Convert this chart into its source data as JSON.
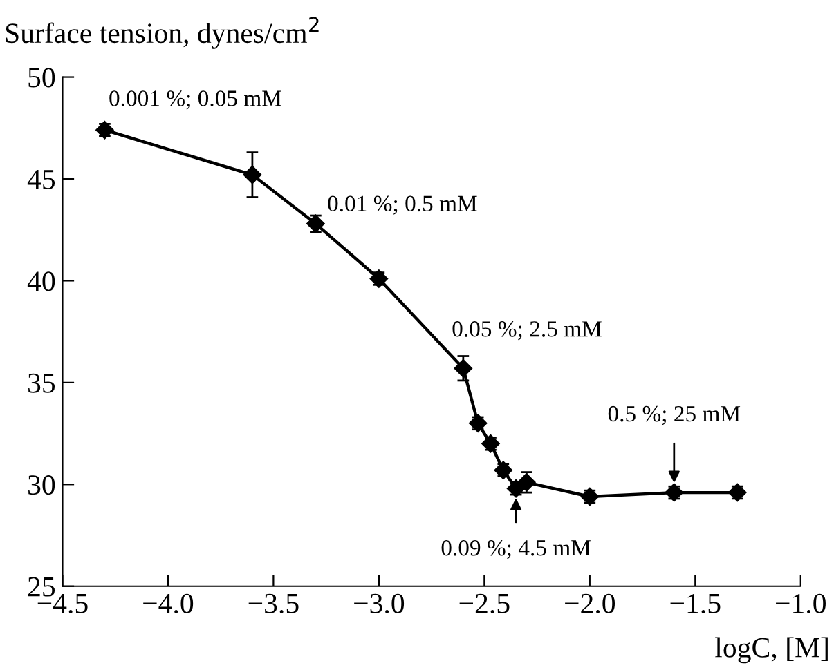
{
  "chart_data": {
    "type": "line",
    "ylabel": "Surface tension, dynes/cm$^{2}$",
    "xlabel": "logC, [M]",
    "x": [
      -4.3,
      -3.6,
      -3.3,
      -3.0,
      -2.6,
      -2.53,
      -2.47,
      -2.41,
      -2.35,
      -2.3,
      -2.0,
      -1.6,
      -1.3
    ],
    "series": [
      {
        "color": "#000000",
        "values": [
          47.4,
          45.2,
          42.8,
          40.1,
          35.7,
          33.0,
          32.0,
          30.7,
          29.8,
          30.1,
          29.4,
          29.6,
          29.6
        ],
        "errors": [
          0.3,
          1.1,
          0.4,
          0.3,
          0.6,
          0.3,
          0.3,
          0.3,
          0.3,
          0.5,
          0.3,
          0.3,
          0.3
        ]
      }
    ],
    "annotations": [
      {
        "text": "0.001 %; 0.05 mM",
        "x": -4.3,
        "y": 47.4
      },
      {
        "text": "0.01 %; 0.5 mM",
        "x": -3.3,
        "y": 42.8
      },
      {
        "text": "0.05 %; 2.5 mM",
        "x": -2.6,
        "y": 35.7
      },
      {
        "text": "0.09 %; 4.5 mM",
        "x": -2.35,
        "y": 29.8
      },
      {
        "text": "0.5 %; 25 mM",
        "x": -1.6,
        "y": 29.6
      }
    ],
    "xlim": [
      -4.5,
      -1.0
    ],
    "xticks": [
      {
        "value": -4.5,
        "label": "−4.5"
      },
      {
        "value": -4.0,
        "label": "−4.0"
      },
      {
        "value": -3.5,
        "label": "−3.5"
      },
      {
        "value": -3.0,
        "label": "−3.0"
      },
      {
        "value": -2.5,
        "label": "−2.5"
      },
      {
        "value": -2.0,
        "label": "−2.0"
      },
      {
        "value": -1.5,
        "label": "−1.5"
      },
      {
        "value": -1.0,
        "label": "−1.0"
      }
    ],
    "ylim": [
      25,
      50
    ],
    "yticks": [
      25,
      30,
      35,
      40,
      45,
      50
    ],
    "grid": false,
    "legend": false,
    "marker": "diamond",
    "line_style": "solid"
  }
}
